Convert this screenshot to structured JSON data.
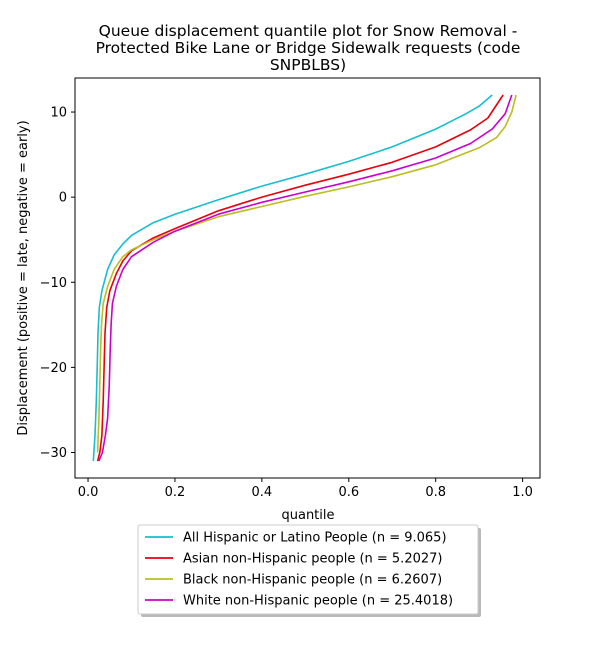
{
  "chart_data": {
    "type": "line",
    "title_lines": [
      "Queue displacement quantile plot for Snow Removal -",
      "Protected Bike Lane or Bridge Sidewalk  requests (code",
      "SNPBLBS)"
    ],
    "xlabel": "quantile",
    "ylabel": "Displacement (positive = late, negative = early)",
    "xlim": [
      -0.03,
      1.04
    ],
    "ylim": [
      -33,
      14
    ],
    "xticks": [
      0.0,
      0.2,
      0.4,
      0.6,
      0.8,
      1.0
    ],
    "xtick_labels": [
      "0.0",
      "0.2",
      "0.4",
      "0.6",
      "0.8",
      "1.0"
    ],
    "yticks": [
      10,
      0,
      -10,
      -20,
      -30
    ],
    "ytick_labels": [
      "10",
      "0",
      "−10",
      "−20",
      "−30"
    ],
    "grid": false,
    "legend_position": "below plot, centered",
    "series": [
      {
        "name": "All Hispanic or Latino People (n = 9.065)",
        "color": "#17becf",
        "points": [
          [
            0.012,
            -31
          ],
          [
            0.016,
            -28
          ],
          [
            0.019,
            -24
          ],
          [
            0.021,
            -20
          ],
          [
            0.023,
            -16
          ],
          [
            0.026,
            -13
          ],
          [
            0.032,
            -11
          ],
          [
            0.045,
            -8.5
          ],
          [
            0.06,
            -6.8
          ],
          [
            0.08,
            -5.5
          ],
          [
            0.1,
            -4.5
          ],
          [
            0.15,
            -3.0
          ],
          [
            0.2,
            -2.0
          ],
          [
            0.3,
            -0.3
          ],
          [
            0.4,
            1.3
          ],
          [
            0.5,
            2.7
          ],
          [
            0.6,
            4.2
          ],
          [
            0.7,
            5.9
          ],
          [
            0.8,
            8.0
          ],
          [
            0.87,
            9.8
          ],
          [
            0.9,
            10.7
          ],
          [
            0.93,
            12
          ]
        ]
      },
      {
        "name": "Asian non-Hispanic people (n = 5.2027)",
        "color": "#e8000b",
        "points": [
          [
            0.022,
            -31
          ],
          [
            0.027,
            -30
          ],
          [
            0.032,
            -28
          ],
          [
            0.035,
            -24
          ],
          [
            0.037,
            -20
          ],
          [
            0.039,
            -16
          ],
          [
            0.043,
            -13
          ],
          [
            0.05,
            -11
          ],
          [
            0.065,
            -9
          ],
          [
            0.08,
            -7.5
          ],
          [
            0.1,
            -6.3
          ],
          [
            0.15,
            -4.8
          ],
          [
            0.2,
            -3.7
          ],
          [
            0.3,
            -1.6
          ],
          [
            0.4,
            0.0
          ],
          [
            0.5,
            1.4
          ],
          [
            0.6,
            2.7
          ],
          [
            0.7,
            4.1
          ],
          [
            0.8,
            5.9
          ],
          [
            0.88,
            7.9
          ],
          [
            0.92,
            9.3
          ],
          [
            0.955,
            12
          ]
        ]
      },
      {
        "name": "Black non-Hispanic people (n = 6.2607)",
        "color": "#bcbd22",
        "points": [
          [
            0.022,
            -30
          ],
          [
            0.025,
            -26
          ],
          [
            0.027,
            -22
          ],
          [
            0.029,
            -18
          ],
          [
            0.031,
            -15
          ],
          [
            0.035,
            -12.5
          ],
          [
            0.045,
            -10.5
          ],
          [
            0.06,
            -8.5
          ],
          [
            0.08,
            -7
          ],
          [
            0.1,
            -6.2
          ],
          [
            0.15,
            -5.0
          ],
          [
            0.2,
            -4.0
          ],
          [
            0.3,
            -2.3
          ],
          [
            0.4,
            -1.1
          ],
          [
            0.5,
            0.1
          ],
          [
            0.6,
            1.2
          ],
          [
            0.7,
            2.4
          ],
          [
            0.8,
            3.8
          ],
          [
            0.9,
            5.8
          ],
          [
            0.94,
            7.0
          ],
          [
            0.96,
            8.3
          ],
          [
            0.975,
            10
          ],
          [
            0.985,
            12
          ]
        ]
      },
      {
        "name": "White non-Hispanic people (n = 25.4018)",
        "color": "#cc00cc",
        "points": [
          [
            0.025,
            -31
          ],
          [
            0.033,
            -30
          ],
          [
            0.04,
            -28
          ],
          [
            0.045,
            -26
          ],
          [
            0.049,
            -22
          ],
          [
            0.051,
            -18
          ],
          [
            0.053,
            -15
          ],
          [
            0.056,
            -12.5
          ],
          [
            0.065,
            -10.5
          ],
          [
            0.08,
            -8.5
          ],
          [
            0.1,
            -7.0
          ],
          [
            0.15,
            -5.3
          ],
          [
            0.2,
            -4.0
          ],
          [
            0.3,
            -2.0
          ],
          [
            0.4,
            -0.6
          ],
          [
            0.5,
            0.6
          ],
          [
            0.6,
            1.8
          ],
          [
            0.7,
            3.1
          ],
          [
            0.8,
            4.6
          ],
          [
            0.88,
            6.3
          ],
          [
            0.93,
            8.0
          ],
          [
            0.96,
            9.8
          ],
          [
            0.975,
            12
          ]
        ]
      }
    ]
  }
}
